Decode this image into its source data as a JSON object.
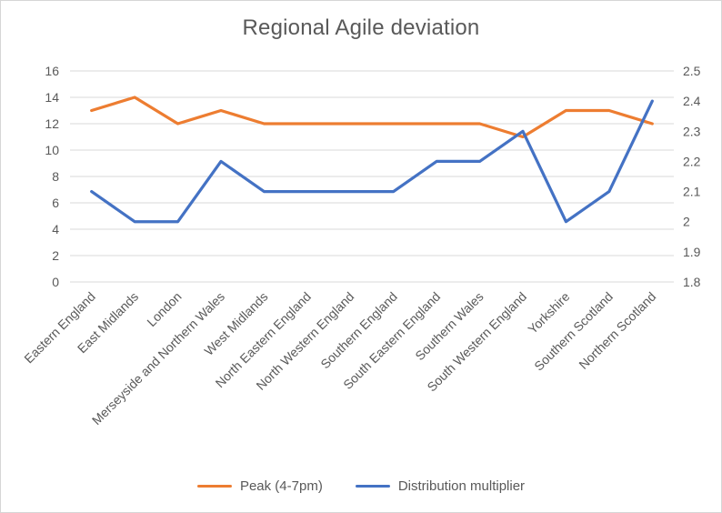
{
  "chart_data": {
    "type": "line",
    "title": "Regional Agile deviation",
    "categories": [
      "Eastern England",
      "East Midlands",
      "London",
      "Merseyside and Northern Wales",
      "West Midlands",
      "North Eastern England",
      "North Western England",
      "Southern England",
      "South Eastern England",
      "Southern Wales",
      "South Western England",
      "Yorkshire",
      "Southern Scotland",
      "Northern Scotland"
    ],
    "series": [
      {
        "name": "Peak (4-7pm)",
        "axis": "left",
        "color": "#ED7D31",
        "values": [
          13,
          14,
          12,
          13,
          12,
          12,
          12,
          12,
          12,
          12,
          11,
          13,
          13,
          12
        ]
      },
      {
        "name": "Distribution multiplier",
        "axis": "right",
        "color": "#4472C4",
        "values": [
          2.1,
          2.0,
          2.0,
          2.2,
          2.1,
          2.1,
          2.1,
          2.1,
          2.2,
          2.2,
          2.3,
          2.0,
          2.1,
          2.4
        ]
      }
    ],
    "left_axis": {
      "min": 0,
      "max": 16,
      "step": 2,
      "tick_labels": [
        "0",
        "2",
        "4",
        "6",
        "8",
        "10",
        "12",
        "14",
        "16"
      ]
    },
    "right_axis": {
      "min": 1.8,
      "max": 2.5,
      "step": 0.1,
      "tick_labels": [
        "1.8",
        "1.9",
        "2",
        "2.1",
        "2.2",
        "2.3",
        "2.4",
        "2.5"
      ]
    },
    "grid": true,
    "legend_position": "bottom"
  },
  "colors": {
    "grid": "#D9D9D9",
    "text": "#595959",
    "background": "#FFFFFF",
    "frame_border": "#D6D6D6"
  }
}
